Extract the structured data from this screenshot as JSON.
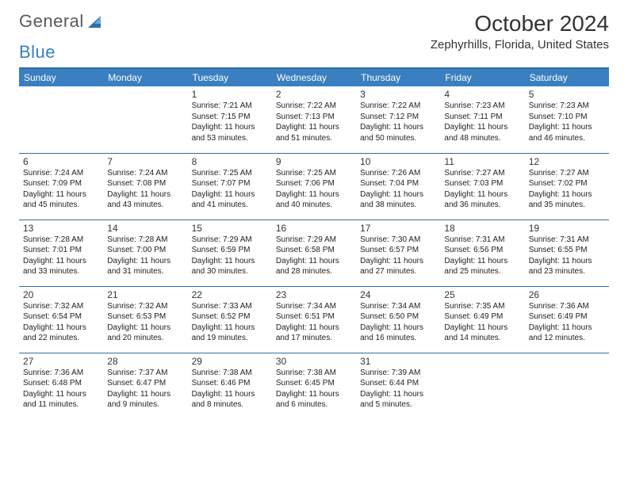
{
  "logo": {
    "word1": "General",
    "word2": "Blue"
  },
  "header": {
    "title": "October 2024",
    "location": "Zephyrhills, Florida, United States"
  },
  "calendar": {
    "header_bg": "#3a7fbf",
    "header_fg": "#ffffff",
    "rule_color": "#2f6fa6",
    "day_names": [
      "Sunday",
      "Monday",
      "Tuesday",
      "Wednesday",
      "Thursday",
      "Friday",
      "Saturday"
    ],
    "weeks": [
      [
        null,
        null,
        {
          "n": "1",
          "sunrise": "Sunrise: 7:21 AM",
          "sunset": "Sunset: 7:15 PM",
          "daylight": "Daylight: 11 hours and 53 minutes."
        },
        {
          "n": "2",
          "sunrise": "Sunrise: 7:22 AM",
          "sunset": "Sunset: 7:13 PM",
          "daylight": "Daylight: 11 hours and 51 minutes."
        },
        {
          "n": "3",
          "sunrise": "Sunrise: 7:22 AM",
          "sunset": "Sunset: 7:12 PM",
          "daylight": "Daylight: 11 hours and 50 minutes."
        },
        {
          "n": "4",
          "sunrise": "Sunrise: 7:23 AM",
          "sunset": "Sunset: 7:11 PM",
          "daylight": "Daylight: 11 hours and 48 minutes."
        },
        {
          "n": "5",
          "sunrise": "Sunrise: 7:23 AM",
          "sunset": "Sunset: 7:10 PM",
          "daylight": "Daylight: 11 hours and 46 minutes."
        }
      ],
      [
        {
          "n": "6",
          "sunrise": "Sunrise: 7:24 AM",
          "sunset": "Sunset: 7:09 PM",
          "daylight": "Daylight: 11 hours and 45 minutes."
        },
        {
          "n": "7",
          "sunrise": "Sunrise: 7:24 AM",
          "sunset": "Sunset: 7:08 PM",
          "daylight": "Daylight: 11 hours and 43 minutes."
        },
        {
          "n": "8",
          "sunrise": "Sunrise: 7:25 AM",
          "sunset": "Sunset: 7:07 PM",
          "daylight": "Daylight: 11 hours and 41 minutes."
        },
        {
          "n": "9",
          "sunrise": "Sunrise: 7:25 AM",
          "sunset": "Sunset: 7:06 PM",
          "daylight": "Daylight: 11 hours and 40 minutes."
        },
        {
          "n": "10",
          "sunrise": "Sunrise: 7:26 AM",
          "sunset": "Sunset: 7:04 PM",
          "daylight": "Daylight: 11 hours and 38 minutes."
        },
        {
          "n": "11",
          "sunrise": "Sunrise: 7:27 AM",
          "sunset": "Sunset: 7:03 PM",
          "daylight": "Daylight: 11 hours and 36 minutes."
        },
        {
          "n": "12",
          "sunrise": "Sunrise: 7:27 AM",
          "sunset": "Sunset: 7:02 PM",
          "daylight": "Daylight: 11 hours and 35 minutes."
        }
      ],
      [
        {
          "n": "13",
          "sunrise": "Sunrise: 7:28 AM",
          "sunset": "Sunset: 7:01 PM",
          "daylight": "Daylight: 11 hours and 33 minutes."
        },
        {
          "n": "14",
          "sunrise": "Sunrise: 7:28 AM",
          "sunset": "Sunset: 7:00 PM",
          "daylight": "Daylight: 11 hours and 31 minutes."
        },
        {
          "n": "15",
          "sunrise": "Sunrise: 7:29 AM",
          "sunset": "Sunset: 6:59 PM",
          "daylight": "Daylight: 11 hours and 30 minutes."
        },
        {
          "n": "16",
          "sunrise": "Sunrise: 7:29 AM",
          "sunset": "Sunset: 6:58 PM",
          "daylight": "Daylight: 11 hours and 28 minutes."
        },
        {
          "n": "17",
          "sunrise": "Sunrise: 7:30 AM",
          "sunset": "Sunset: 6:57 PM",
          "daylight": "Daylight: 11 hours and 27 minutes."
        },
        {
          "n": "18",
          "sunrise": "Sunrise: 7:31 AM",
          "sunset": "Sunset: 6:56 PM",
          "daylight": "Daylight: 11 hours and 25 minutes."
        },
        {
          "n": "19",
          "sunrise": "Sunrise: 7:31 AM",
          "sunset": "Sunset: 6:55 PM",
          "daylight": "Daylight: 11 hours and 23 minutes."
        }
      ],
      [
        {
          "n": "20",
          "sunrise": "Sunrise: 7:32 AM",
          "sunset": "Sunset: 6:54 PM",
          "daylight": "Daylight: 11 hours and 22 minutes."
        },
        {
          "n": "21",
          "sunrise": "Sunrise: 7:32 AM",
          "sunset": "Sunset: 6:53 PM",
          "daylight": "Daylight: 11 hours and 20 minutes."
        },
        {
          "n": "22",
          "sunrise": "Sunrise: 7:33 AM",
          "sunset": "Sunset: 6:52 PM",
          "daylight": "Daylight: 11 hours and 19 minutes."
        },
        {
          "n": "23",
          "sunrise": "Sunrise: 7:34 AM",
          "sunset": "Sunset: 6:51 PM",
          "daylight": "Daylight: 11 hours and 17 minutes."
        },
        {
          "n": "24",
          "sunrise": "Sunrise: 7:34 AM",
          "sunset": "Sunset: 6:50 PM",
          "daylight": "Daylight: 11 hours and 16 minutes."
        },
        {
          "n": "25",
          "sunrise": "Sunrise: 7:35 AM",
          "sunset": "Sunset: 6:49 PM",
          "daylight": "Daylight: 11 hours and 14 minutes."
        },
        {
          "n": "26",
          "sunrise": "Sunrise: 7:36 AM",
          "sunset": "Sunset: 6:49 PM",
          "daylight": "Daylight: 11 hours and 12 minutes."
        }
      ],
      [
        {
          "n": "27",
          "sunrise": "Sunrise: 7:36 AM",
          "sunset": "Sunset: 6:48 PM",
          "daylight": "Daylight: 11 hours and 11 minutes."
        },
        {
          "n": "28",
          "sunrise": "Sunrise: 7:37 AM",
          "sunset": "Sunset: 6:47 PM",
          "daylight": "Daylight: 11 hours and 9 minutes."
        },
        {
          "n": "29",
          "sunrise": "Sunrise: 7:38 AM",
          "sunset": "Sunset: 6:46 PM",
          "daylight": "Daylight: 11 hours and 8 minutes."
        },
        {
          "n": "30",
          "sunrise": "Sunrise: 7:38 AM",
          "sunset": "Sunset: 6:45 PM",
          "daylight": "Daylight: 11 hours and 6 minutes."
        },
        {
          "n": "31",
          "sunrise": "Sunrise: 7:39 AM",
          "sunset": "Sunset: 6:44 PM",
          "daylight": "Daylight: 11 hours and 5 minutes."
        },
        null,
        null
      ]
    ]
  }
}
